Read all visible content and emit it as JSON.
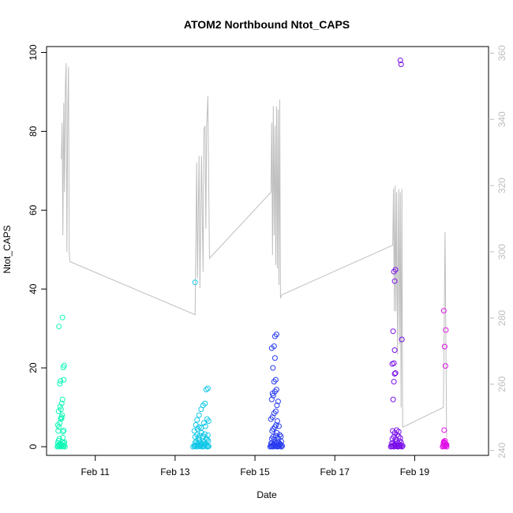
{
  "chart_data": {
    "type": "scatter",
    "title": "ATOM2 Northbound Ntot_CAPS",
    "xlabel": "Date",
    "ylabel": "Ntot_CAPS",
    "x_ticks": [
      {
        "label": "Feb 11",
        "day": 11
      },
      {
        "label": "Feb 13",
        "day": 13
      },
      {
        "label": "Feb 15",
        "day": 15
      },
      {
        "label": "Feb 17",
        "day": 17
      },
      {
        "label": "Feb 19",
        "day": 19
      }
    ],
    "xlim": [
      9.78,
      20.85
    ],
    "ylim": [
      -2.2,
      101.5
    ],
    "y_ticks": [
      0,
      20,
      40,
      60,
      80,
      100
    ],
    "y2lim": [
      238.5,
      362.0
    ],
    "y2_ticks": [
      240,
      260,
      280,
      300,
      320,
      340,
      360
    ],
    "y2_color": "#bebebe",
    "flight_colors": [
      "#10f8b8",
      "#10c8e8",
      "#2a3ef0",
      "#7a10ea",
      "#e010e6"
    ],
    "right_axis_line": [
      [
        10.15,
        328
      ],
      [
        10.17,
        339
      ],
      [
        10.19,
        305
      ],
      [
        10.21,
        345
      ],
      [
        10.23,
        318
      ],
      [
        10.25,
        350
      ],
      [
        10.27,
        357
      ],
      [
        10.29,
        300
      ],
      [
        10.31,
        341
      ],
      [
        10.33,
        356
      ],
      [
        10.35,
        299
      ],
      [
        10.37,
        297
      ],
      [
        13.5,
        281
      ],
      [
        13.52,
        305
      ],
      [
        13.54,
        327
      ],
      [
        13.56,
        292
      ],
      [
        13.6,
        329
      ],
      [
        13.62,
        289
      ],
      [
        13.66,
        329
      ],
      [
        13.7,
        294
      ],
      [
        13.72,
        337
      ],
      [
        13.75,
        338
      ],
      [
        13.77,
        307
      ],
      [
        13.79,
        338
      ],
      [
        13.82,
        347
      ],
      [
        13.86,
        298
      ],
      [
        15.4,
        318
      ],
      [
        15.42,
        339
      ],
      [
        15.44,
        299
      ],
      [
        15.46,
        344
      ],
      [
        15.48,
        305
      ],
      [
        15.5,
        338
      ],
      [
        15.52,
        296
      ],
      [
        15.54,
        344
      ],
      [
        15.56,
        295
      ],
      [
        15.58,
        343
      ],
      [
        15.6,
        290
      ],
      [
        15.62,
        346
      ],
      [
        15.64,
        286
      ],
      [
        15.67,
        287
      ],
      [
        18.45,
        302
      ],
      [
        18.47,
        319
      ],
      [
        18.49,
        282
      ],
      [
        18.51,
        320
      ],
      [
        18.53,
        282
      ],
      [
        18.55,
        318
      ],
      [
        18.57,
        269
      ],
      [
        18.6,
        319
      ],
      [
        18.62,
        272
      ],
      [
        18.64,
        318
      ],
      [
        18.66,
        253
      ],
      [
        18.68,
        319
      ],
      [
        18.7,
        247
      ],
      [
        19.72,
        253
      ],
      [
        19.76,
        306
      ],
      [
        19.8,
        244
      ]
    ],
    "series": [
      {
        "x": [
          10.05,
          10.07,
          10.09,
          10.1,
          10.12,
          10.14,
          10.16,
          10.18,
          10.2,
          10.22,
          10.24,
          10.06,
          10.08,
          10.1,
          10.12,
          10.15,
          10.17,
          10.19,
          10.21,
          10.23,
          10.07,
          10.09,
          10.11,
          10.13,
          10.15,
          10.17,
          10.19,
          10.21,
          10.08,
          10.12,
          10.14,
          10.16,
          10.18,
          10.11,
          10.13,
          10.2,
          10.22,
          10.09,
          10.18,
          10.21,
          10.06,
          10.16
        ],
        "y": [
          0.0,
          0.2,
          0.5,
          0.1,
          0.3,
          0.0,
          0.4,
          0.2,
          0.1,
          0.3,
          0.0,
          1.0,
          1.5,
          2.0,
          0.8,
          0.6,
          1.2,
          2.3,
          0.9,
          1.1,
          4.0,
          5.0,
          6.0,
          7.0,
          7.5,
          8.0,
          3.8,
          4.1,
          9.0,
          10.2,
          9.5,
          11.0,
          12.0,
          16.0,
          16.7,
          20.1,
          20.6,
          30.5,
          32.8,
          17.0,
          5.5,
          7.2
        ]
      },
      {
        "x": [
          13.45,
          13.48,
          13.5,
          13.52,
          13.55,
          13.57,
          13.6,
          13.62,
          13.65,
          13.68,
          13.7,
          13.72,
          13.75,
          13.78,
          13.8,
          13.82,
          13.84,
          13.5,
          13.53,
          13.56,
          13.6,
          13.63,
          13.66,
          13.7,
          13.73,
          13.76,
          13.8,
          13.83,
          13.5,
          13.55,
          13.58,
          13.62,
          13.66,
          13.7,
          13.74,
          13.78,
          13.82,
          13.48,
          13.52,
          13.56,
          13.6,
          13.65,
          13.72,
          13.76,
          13.8,
          13.84,
          13.55,
          13.6,
          13.65,
          13.7,
          13.75,
          13.78,
          13.82,
          13.5
        ],
        "y": [
          0.0,
          0.2,
          0.1,
          0.3,
          0.0,
          0.4,
          0.2,
          0.1,
          0.3,
          0.0,
          0.2,
          0.1,
          0.5,
          0.3,
          0.0,
          0.2,
          0.1,
          1.0,
          1.3,
          0.8,
          1.6,
          1.1,
          0.9,
          1.4,
          1.2,
          0.7,
          1.8,
          1.5,
          2.5,
          3.0,
          2.2,
          2.8,
          3.5,
          2.6,
          3.2,
          2.1,
          2.9,
          4.0,
          5.5,
          4.5,
          5.0,
          4.8,
          6.0,
          5.2,
          7.0,
          6.5,
          6.8,
          8.0,
          9.5,
          10.5,
          11.0,
          14.5,
          14.8,
          41.7
        ]
      },
      {
        "x": [
          15.38,
          15.4,
          15.42,
          15.44,
          15.46,
          15.48,
          15.5,
          15.52,
          15.54,
          15.56,
          15.58,
          15.6,
          15.62,
          15.64,
          15.66,
          15.68,
          15.4,
          15.43,
          15.46,
          15.5,
          15.53,
          15.56,
          15.6,
          15.63,
          15.66,
          15.42,
          15.45,
          15.48,
          15.52,
          15.55,
          15.58,
          15.62,
          15.65,
          15.43,
          15.46,
          15.5,
          15.53,
          15.56,
          15.6,
          15.4,
          15.44,
          15.48,
          15.52,
          15.55,
          15.58,
          15.42,
          15.46,
          15.5,
          15.54,
          15.44,
          15.48,
          15.52,
          15.45,
          15.5,
          15.42,
          15.48,
          15.5,
          15.54
        ],
        "y": [
          0.0,
          0.2,
          0.1,
          0.3,
          0.0,
          0.4,
          0.2,
          0.1,
          0.3,
          0.0,
          0.2,
          0.1,
          0.5,
          0.3,
          0.0,
          0.2,
          0.8,
          1.0,
          0.6,
          1.2,
          0.9,
          1.4,
          1.1,
          0.7,
          1.3,
          2.0,
          2.5,
          1.8,
          2.8,
          3.5,
          2.2,
          3.0,
          2.6,
          4.0,
          4.5,
          5.0,
          5.5,
          6.5,
          5.2,
          7.0,
          7.5,
          8.5,
          9.0,
          10.5,
          11.5,
          12.0,
          13.0,
          14.0,
          14.5,
          13.5,
          16.5,
          17.0,
          20.0,
          22.5,
          25.0,
          25.5,
          28.0,
          28.5
        ]
      },
      {
        "x": [
          18.4,
          18.42,
          18.44,
          18.46,
          18.48,
          18.5,
          18.52,
          18.54,
          18.56,
          18.58,
          18.6,
          18.62,
          18.64,
          18.66,
          18.68,
          18.7,
          18.42,
          18.46,
          18.5,
          18.54,
          18.58,
          18.62,
          18.66,
          18.44,
          18.48,
          18.52,
          18.56,
          18.6,
          18.64,
          18.45,
          18.5,
          18.55,
          18.6,
          18.46,
          18.48,
          18.5,
          18.52,
          18.44,
          18.48,
          18.5,
          18.46,
          18.5,
          18.48,
          18.52,
          18.68,
          18.66,
          18.64
        ],
        "y": [
          0.0,
          0.2,
          0.1,
          0.3,
          0.0,
          0.4,
          0.2,
          0.1,
          0.3,
          0.0,
          0.2,
          0.1,
          0.5,
          0.3,
          0.0,
          0.2,
          0.8,
          1.0,
          0.6,
          1.2,
          0.9,
          1.4,
          1.1,
          2.0,
          2.5,
          1.8,
          3.0,
          2.6,
          2.2,
          4.0,
          3.5,
          4.2,
          3.8,
          12.0,
          16.5,
          18.5,
          18.7,
          21.0,
          21.2,
          24.5,
          29.3,
          42.0,
          44.4,
          44.9,
          27.2,
          97.0,
          98.0
        ]
      },
      {
        "x": [
          19.7,
          19.72,
          19.74,
          19.76,
          19.78,
          19.8,
          19.72,
          19.75,
          19.78,
          19.73,
          19.76,
          19.74,
          19.77,
          19.75,
          19.78,
          19.73,
          19.8,
          19.76,
          19.74
        ],
        "y": [
          0.0,
          0.2,
          0.4,
          0.1,
          0.3,
          0.0,
          0.8,
          1.0,
          0.6,
          1.3,
          1.5,
          4.2,
          20.5,
          25.4,
          29.6,
          34.5,
          0.5,
          0.9,
          1.1
        ]
      }
    ]
  }
}
